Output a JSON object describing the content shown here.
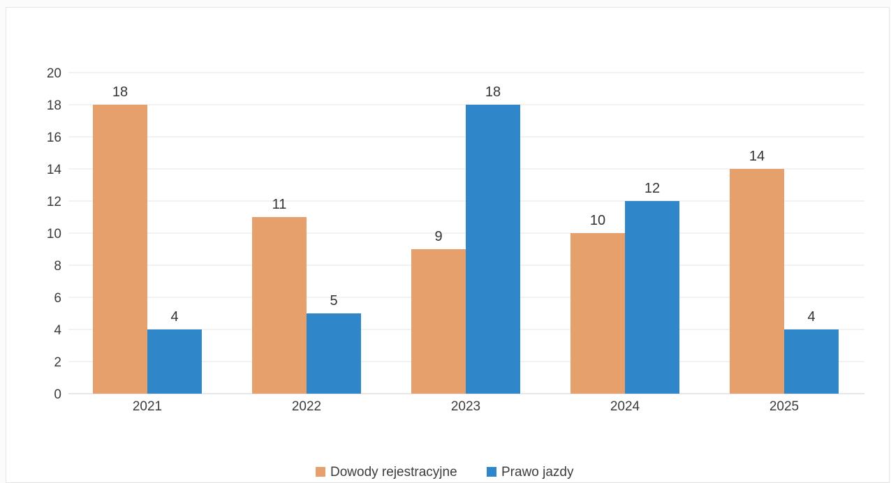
{
  "chart_data": {
    "type": "bar",
    "categories": [
      "2021",
      "2022",
      "2023",
      "2024",
      "2025"
    ],
    "series": [
      {
        "name": "Dowody rejestracyjne",
        "values": [
          18,
          11,
          9,
          10,
          14
        ],
        "color": "#e6a06b"
      },
      {
        "name": "Prawo jazdy",
        "values": [
          4,
          5,
          18,
          12,
          4
        ],
        "color": "#2f86c9"
      }
    ],
    "ylim": [
      0,
      20
    ],
    "yticks": [
      0,
      2,
      4,
      6,
      8,
      10,
      12,
      14,
      16,
      18,
      20
    ],
    "grid": true,
    "legend_position": "bottom",
    "data_labels": true,
    "title": "",
    "xlabel": "",
    "ylabel": ""
  }
}
